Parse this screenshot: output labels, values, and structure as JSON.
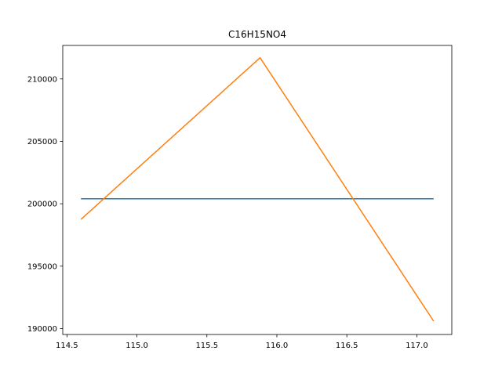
{
  "chart_data": {
    "type": "line",
    "title": "C16H15NO4",
    "xlabel": "",
    "ylabel": "",
    "xlim": [
      114.47,
      117.25
    ],
    "ylim": [
      189525,
      212685
    ],
    "x_ticks": [
      114.5,
      115.0,
      115.5,
      116.0,
      116.5,
      117.0
    ],
    "x_tick_labels": [
      "114.5",
      "115.0",
      "115.5",
      "116.0",
      "116.5",
      "117.0"
    ],
    "y_ticks": [
      190000,
      195000,
      200000,
      205000,
      210000
    ],
    "y_tick_labels": [
      "190000",
      "195000",
      "200000",
      "205000",
      "210000"
    ],
    "grid": false,
    "series": [
      {
        "color": "#1f77b4",
        "x": [
          114.6,
          117.12
        ],
        "y": [
          200400,
          200400
        ]
      },
      {
        "color": "#ff7f0e",
        "x": [
          114.6,
          115.88,
          117.12
        ],
        "y": [
          198750,
          211700,
          190600
        ]
      }
    ]
  }
}
